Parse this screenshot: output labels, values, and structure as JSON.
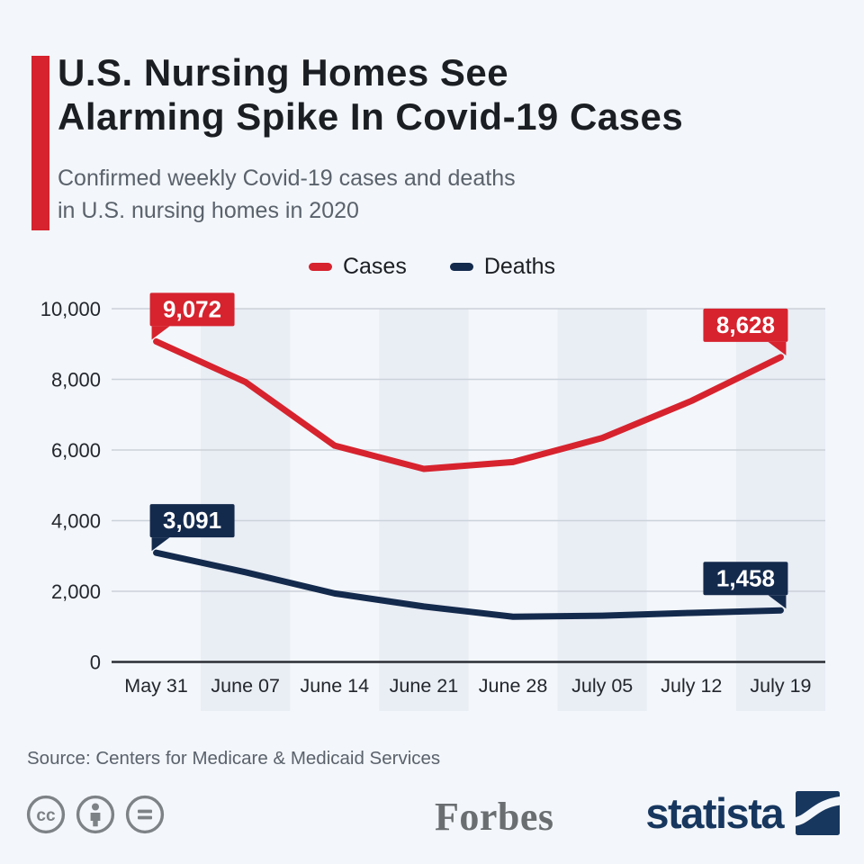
{
  "header": {
    "title_line1": "U.S. Nursing Homes See",
    "title_line2": "Alarming Spike In Covid-19 Cases",
    "subtitle_line1": "Confirmed weekly Covid-19 cases and deaths",
    "subtitle_line2": "in U.S. nursing homes in 2020",
    "accent_color": "#d6232e"
  },
  "legend": [
    {
      "label": "Cases",
      "color": "#d6232e"
    },
    {
      "label": "Deaths",
      "color": "#142a4d"
    }
  ],
  "chart_data": {
    "type": "line",
    "title": "Confirmed weekly Covid-19 cases and deaths in U.S. nursing homes in 2020",
    "categories": [
      "May 31",
      "June 07",
      "June 14",
      "June 21",
      "June 28",
      "July 05",
      "July 12",
      "July 19"
    ],
    "series": [
      {
        "name": "Cases",
        "color": "#d6232e",
        "values": [
          9072,
          7925,
          6125,
          5465,
          5660,
          6340,
          7390,
          8628
        ]
      },
      {
        "name": "Deaths",
        "color": "#142a4d",
        "values": [
          3091,
          2540,
          1940,
          1570,
          1280,
          1310,
          1390,
          1458
        ]
      }
    ],
    "labeled_points": [
      {
        "series": "Cases",
        "index": 0,
        "text": "9,072"
      },
      {
        "series": "Cases",
        "index": 7,
        "text": "8,628"
      },
      {
        "series": "Deaths",
        "index": 0,
        "text": "3,091"
      },
      {
        "series": "Deaths",
        "index": 7,
        "text": "1,458"
      }
    ],
    "y_ticks": [
      {
        "label": "0",
        "value": 0
      },
      {
        "label": "2,000",
        "value": 2000
      },
      {
        "label": "4,000",
        "value": 4000
      },
      {
        "label": "6,000",
        "value": 6000
      },
      {
        "label": "8,000",
        "value": 8000
      },
      {
        "label": "10,000",
        "value": 10000
      }
    ],
    "ylim": [
      0,
      10000
    ],
    "grid": true,
    "legend_position": "top-center",
    "band_columns": [
      1,
      3,
      5,
      7
    ],
    "band_color": "#e9edf4",
    "grid_color": "#ccd2da",
    "axis_color": "#2a2e34"
  },
  "footer": {
    "source": "Source: Centers for Medicare & Medicaid Services",
    "license_icons": [
      "cc-icon",
      "attribution-icon",
      "equal-icon"
    ],
    "brands": {
      "forbes": "Forbes",
      "statista": "statista",
      "statista_color": "#17375f"
    }
  }
}
